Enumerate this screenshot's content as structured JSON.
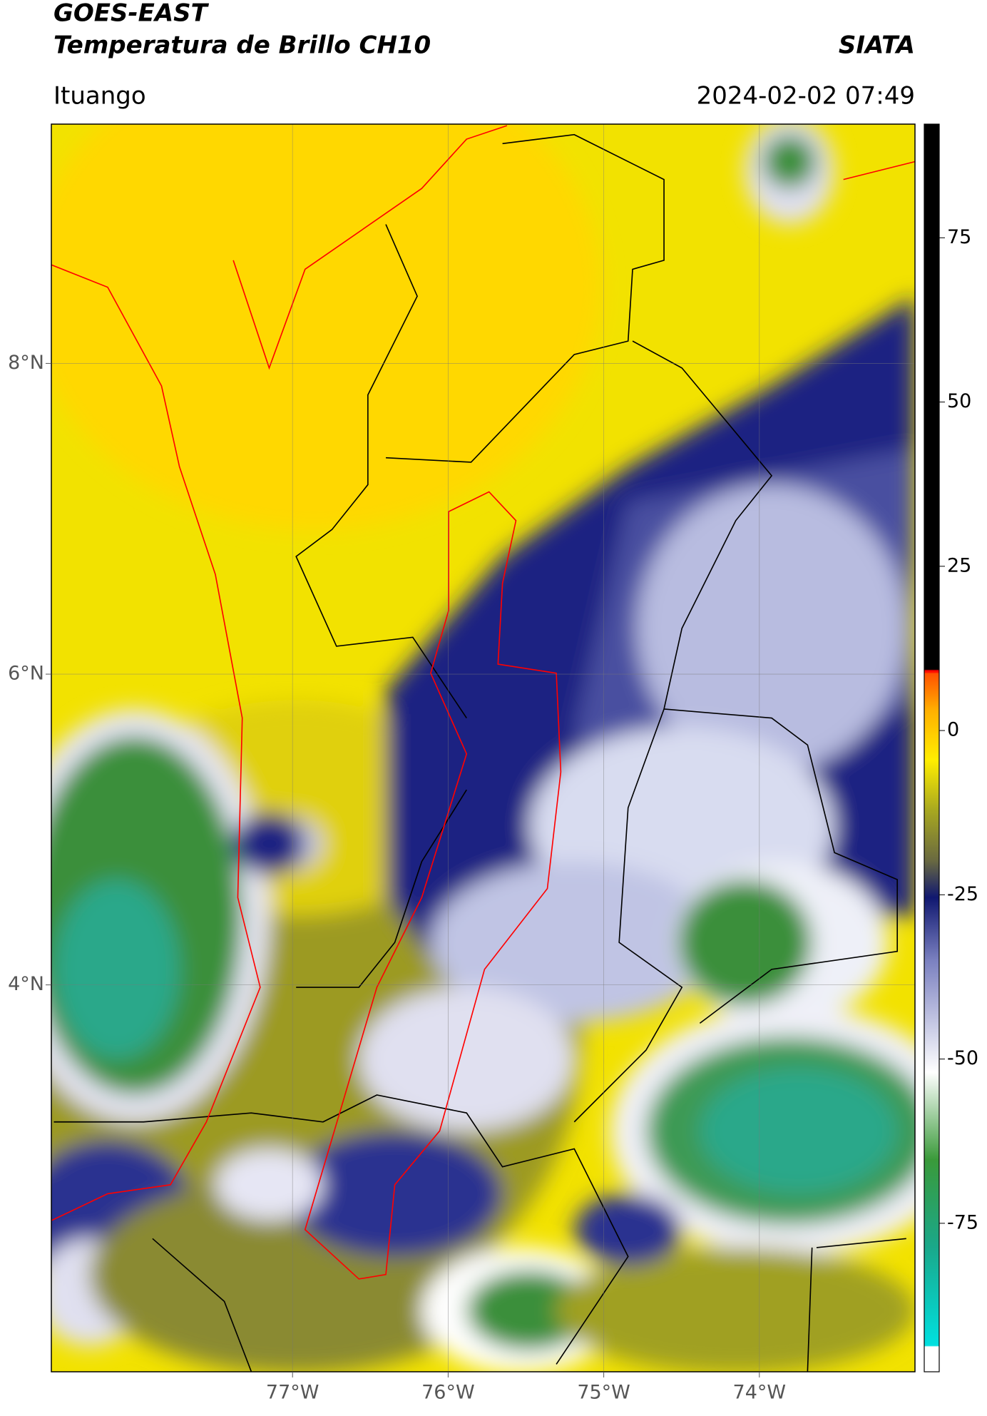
{
  "header": {
    "title": "GOES-EAST",
    "subtitle": "Temperatura de Brillo CH10",
    "source": "SIATA",
    "location": "Ituango",
    "datetime": "2024-02-02 07:49"
  },
  "map": {
    "lonlim": [
      -78.55,
      -73.0
    ],
    "latlim": [
      1.51,
      9.54
    ],
    "lonticks": [
      {
        "value": -77,
        "label": "77°W"
      },
      {
        "value": -76,
        "label": "76°W"
      },
      {
        "value": -75,
        "label": "75°W"
      },
      {
        "value": -74,
        "label": "74°W"
      }
    ],
    "latticks": [
      {
        "value": 8,
        "label": "8°N"
      },
      {
        "value": 6,
        "label": "6°N"
      },
      {
        "value": 4,
        "label": "4°N"
      }
    ],
    "grid": true
  },
  "colorbar": {
    "lim": [
      -97.6,
      92.3
    ],
    "ticks": [
      75,
      50,
      25,
      0,
      -25,
      -50,
      -75
    ]
  }
}
